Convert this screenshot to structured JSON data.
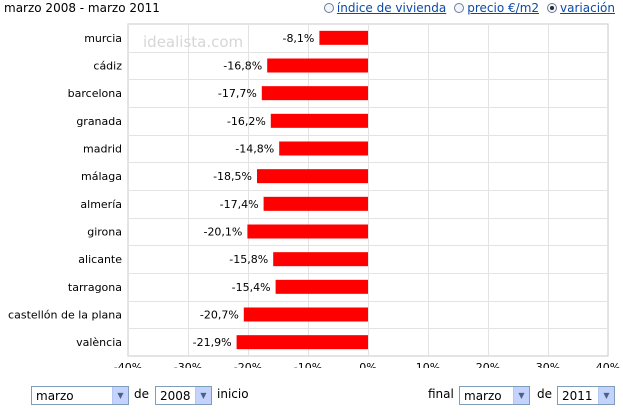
{
  "header": {
    "title": "marzo 2008 - marzo 2011",
    "options": [
      {
        "label": "índice de vivienda",
        "checked": false
      },
      {
        "label": "precio €/m2",
        "checked": false
      },
      {
        "label": "variación",
        "checked": true
      }
    ]
  },
  "watermark": "idealista.com",
  "chart_data": {
    "type": "bar",
    "orientation": "horizontal",
    "categories": [
      "murcia",
      "cádiz",
      "barcelona",
      "granada",
      "madrid",
      "málaga",
      "almería",
      "girona",
      "alicante",
      "tarragona",
      "castellón de la plana",
      "valència"
    ],
    "values": [
      -8.1,
      -16.8,
      -17.7,
      -16.2,
      -14.8,
      -18.5,
      -17.4,
      -20.1,
      -15.8,
      -15.4,
      -20.7,
      -21.9
    ],
    "labels": [
      "-8,1%",
      "-16,8%",
      "-17,7%",
      "-16,2%",
      "-14,8%",
      "-18,5%",
      "-17,4%",
      "-20,1%",
      "-15,8%",
      "-15,4%",
      "-20,7%",
      "-21,9%"
    ],
    "xlim": [
      -40,
      40
    ],
    "xticks": [
      -40,
      -30,
      -20,
      -10,
      0,
      10,
      20,
      30,
      40
    ],
    "xtick_labels": [
      "-40%",
      "-30%",
      "-20%",
      "-10%",
      "0%",
      "10%",
      "20%",
      "30%",
      "40%"
    ],
    "grid": true,
    "bar_color": "#ff0000"
  },
  "controls": {
    "start_month": "marzo",
    "de1": "de",
    "start_year": "2008",
    "inicio": "inicio",
    "final": "final",
    "end_month": "marzo",
    "de2": "de",
    "end_year": "2011"
  }
}
